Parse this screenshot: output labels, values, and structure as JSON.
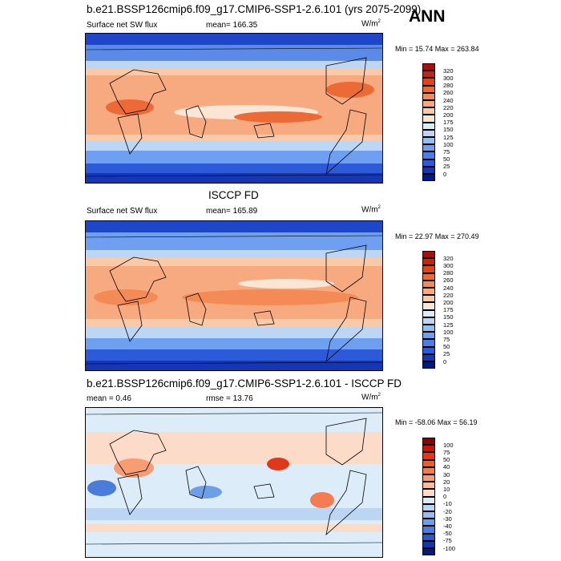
{
  "season": "ANN",
  "panels": [
    {
      "title": "b.e21.BSSP126cmip6.f09_g17.CMIP6-SSP1-2.6.101 (yrs 2075-2099)",
      "left_label": "Surface net SW flux",
      "mid_label": "mean= 166.35",
      "unit": "W/m",
      "unit_sup": "2",
      "minmax": "Min = 15.74 Max = 263.84",
      "levels": [
        "320",
        "300",
        "280",
        "260",
        "240",
        "220",
        "200",
        "175",
        "150",
        "125",
        "100",
        "75",
        "50",
        "25",
        "0"
      ],
      "colors": [
        "#a50f0f",
        "#c8230e",
        "#e0451a",
        "#ec6a36",
        "#f48a56",
        "#f7aa7f",
        "#fac9a8",
        "#fbe6d6",
        "#dcecf8",
        "#bcd6f3",
        "#96bff1",
        "#6e9ff0",
        "#4b7ee6",
        "#2c5ad8",
        "#1436b8",
        "#001a80"
      ]
    },
    {
      "title": "ISCCP FD",
      "left_label": "Surface net SW flux",
      "mid_label": "mean= 165.89",
      "unit": "W/m",
      "unit_sup": "2",
      "minmax": "Min = 22.97 Max = 270.49",
      "levels": [
        "320",
        "300",
        "280",
        "260",
        "240",
        "220",
        "200",
        "175",
        "150",
        "125",
        "100",
        "75",
        "50",
        "25",
        "0"
      ],
      "colors": [
        "#a50f0f",
        "#c8230e",
        "#e0451a",
        "#ec6a36",
        "#f48a56",
        "#f7aa7f",
        "#fac9a8",
        "#fbe6d6",
        "#dcecf8",
        "#bcd6f3",
        "#96bff1",
        "#6e9ff0",
        "#4b7ee6",
        "#2c5ad8",
        "#1436b8",
        "#001a80"
      ]
    },
    {
      "title": "b.e21.BSSP126cmip6.f09_g17.CMIP6-SSP1-2.6.101 - ISCCP FD",
      "left_label": "mean =   0.46",
      "mid_label": "rmse =  13.76",
      "unit": "W/m",
      "unit_sup": "2",
      "minmax": "Min = -58.06 Max =  56.19",
      "levels": [
        "100",
        "75",
        "50",
        "40",
        "30",
        "20",
        "10",
        "0",
        "-10",
        "-20",
        "-30",
        "-40",
        "-50",
        "-75",
        "-100"
      ],
      "colors": [
        "#8b0000",
        "#c0180a",
        "#e0391a",
        "#ee5a32",
        "#f47c50",
        "#f79d74",
        "#f9bb9a",
        "#fcdcc8",
        "#ddebf8",
        "#bcd5f2",
        "#97bdee",
        "#6e9ee8",
        "#4a7cdc",
        "#2a58c8",
        "#1434a8",
        "#001a80"
      ]
    }
  ],
  "chart_data": [
    {
      "type": "heatmap",
      "title": "b.e21.BSSP126cmip6.f09_g17.CMIP6-SSP1-2.6.101 (yrs 2075-2099)",
      "variable": "Surface net SW flux",
      "units": "W/m2",
      "mean": 166.35,
      "min": 15.74,
      "max": 263.84,
      "colorbar_levels": [
        0,
        25,
        50,
        75,
        100,
        125,
        150,
        175,
        200,
        220,
        240,
        260,
        280,
        300,
        320
      ]
    },
    {
      "type": "heatmap",
      "title": "ISCCP FD",
      "variable": "Surface net SW flux",
      "units": "W/m2",
      "mean": 165.89,
      "min": 22.97,
      "max": 270.49,
      "colorbar_levels": [
        0,
        25,
        50,
        75,
        100,
        125,
        150,
        175,
        200,
        220,
        240,
        260,
        280,
        300,
        320
      ]
    },
    {
      "type": "heatmap",
      "title": "b.e21.BSSP126cmip6.f09_g17.CMIP6-SSP1-2.6.101 - ISCCP FD",
      "units": "W/m2",
      "mean": 0.46,
      "rmse": 13.76,
      "min": -58.06,
      "max": 56.19,
      "colorbar_levels": [
        -100,
        -75,
        -50,
        -40,
        -30,
        -20,
        -10,
        0,
        10,
        20,
        30,
        40,
        50,
        75,
        100
      ]
    }
  ]
}
